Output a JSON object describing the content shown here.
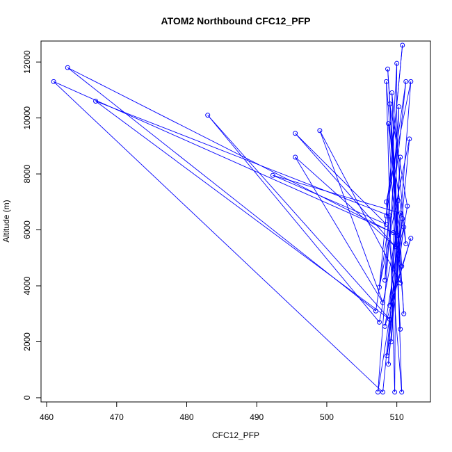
{
  "chart_data": {
    "type": "line",
    "title": "ATOM2 Northbound CFC12_PFP",
    "xlabel": "CFC12_PFP",
    "ylabel": "Altitude (m)",
    "xlim": [
      459.2,
      514.8
    ],
    "ylim": [
      -150,
      12750
    ],
    "x_ticks": [
      460,
      470,
      480,
      490,
      500,
      510
    ],
    "y_ticks": [
      0,
      2000,
      4000,
      6000,
      8000,
      10000,
      12000
    ],
    "grid": false,
    "legend": "none",
    "marker": "open-circle",
    "color": "#0000ff",
    "series": [
      {
        "x": [
          509.5,
          461.0,
          508.0,
          510.2,
          463.0,
          507.0,
          509.0,
          467.0,
          509.0,
          483.0,
          507.5,
          510.5,
          492.3,
          508.5,
          495.5,
          509.8,
          495.5,
          508.0,
          499.0,
          510.5,
          508.7,
          511.0,
          508.5,
          509.7,
          510.0,
          508.3,
          511.3,
          508.5,
          510.8,
          507.5,
          511.8,
          508.8,
          510.3,
          507.3,
          511.5,
          509.0,
          510.5,
          508.8,
          511.3,
          509.3,
          510.7,
          508.5,
          512.0,
          509.2,
          510.5,
          509.5,
          511.0,
          508.6,
          510.8,
          508.3,
          512.0,
          509.0,
          510.2,
          510.7
        ],
        "y": [
          5900,
          11300,
          200,
          5800,
          11800,
          3100,
          6500,
          10600,
          2800,
          10100,
          2700,
          6600,
          7950,
          6200,
          9450,
          5400,
          8600,
          3400,
          9550,
          4100,
          11750,
          3000,
          11300,
          200,
          11950,
          4200,
          11300,
          6500,
          12600,
          3950,
          9250,
          1200,
          10400,
          200,
          6850,
          10500,
          2450,
          9800,
          5500,
          10900,
          200,
          7000,
          11300,
          2000,
          8600,
          4600,
          6100,
          1500,
          6400,
          2550,
          5700,
          3300,
          7050,
          4700
        ]
      }
    ]
  }
}
